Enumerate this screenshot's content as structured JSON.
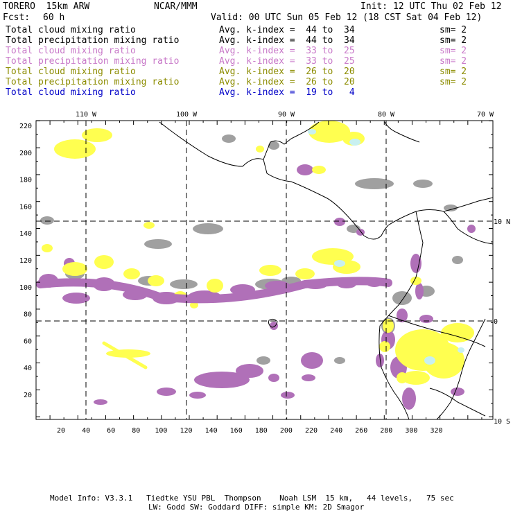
{
  "header": {
    "model": "TORERO  15km ARW",
    "center": "NCAR/MMM",
    "init": "Init: 12 UTC Thu 02 Feb 12",
    "fcst_label": "Fcst:",
    "fcst_value": "60 h",
    "valid": "Valid: 00 UTC Sun 05 Feb 12 (18 CST Sat 04 Feb 12)"
  },
  "legend": [
    {
      "field": "Total cloud mixing ratio",
      "level": "Avg. k-index =  44 to  34",
      "sm": "sm= 2",
      "color": "#000000"
    },
    {
      "field": "Total precipitation mixing ratio",
      "level": "Avg. k-index =  44 to  34",
      "sm": "sm= 2",
      "color": "#000000"
    },
    {
      "field": "Total cloud mixing ratio",
      "level": "Avg. k-index =  33 to  25",
      "sm": "sm= 2",
      "color": "#c878c8"
    },
    {
      "field": "Total precipitation mixing ratio",
      "level": "Avg. k-index =  33 to  25",
      "sm": "sm= 2",
      "color": "#c878c8"
    },
    {
      "field": "Total cloud mixing ratio",
      "level": "Avg. k-index =  26 to  20",
      "sm": "sm= 2",
      "color": "#8c8c00"
    },
    {
      "field": "Total precipitation mixing ratio",
      "level": "Avg. k-index =  26 to  20",
      "sm": "sm= 2",
      "color": "#8c8c00"
    },
    {
      "field": "Total cloud mixing ratio",
      "level": "Avg. k-index =  19 to   4",
      "sm": "",
      "color": "#0000c8"
    }
  ],
  "map": {
    "lon_labels": [
      "110 W",
      "100 W",
      "90 W",
      "80 W",
      "70 W"
    ],
    "lat_labels": [
      "10 N",
      "0",
      "10 S"
    ],
    "x_ticks": [
      "20",
      "40",
      "60",
      "80",
      "100",
      "120",
      "140",
      "160",
      "180",
      "200",
      "220",
      "240",
      "260",
      "280",
      "300",
      "320"
    ],
    "y_ticks": [
      "220",
      "200",
      "180",
      "160",
      "140",
      "120",
      "100",
      "80",
      "60",
      "40",
      "20"
    ],
    "colors": {
      "gray": "#a0a0a0",
      "purple": "#b070b8",
      "yellow": "#ffff50",
      "cyan": "#c8f0f0",
      "coast": "#000000"
    }
  },
  "footer": {
    "line1": "Model Info: V3.3.1   Tiedtke YSU PBL  Thompson    Noah LSM  15 km,   44 levels,   75 sec",
    "line2": "LW: Godd SW: Goddard DIFF: simple KM: 2D Smagor"
  }
}
